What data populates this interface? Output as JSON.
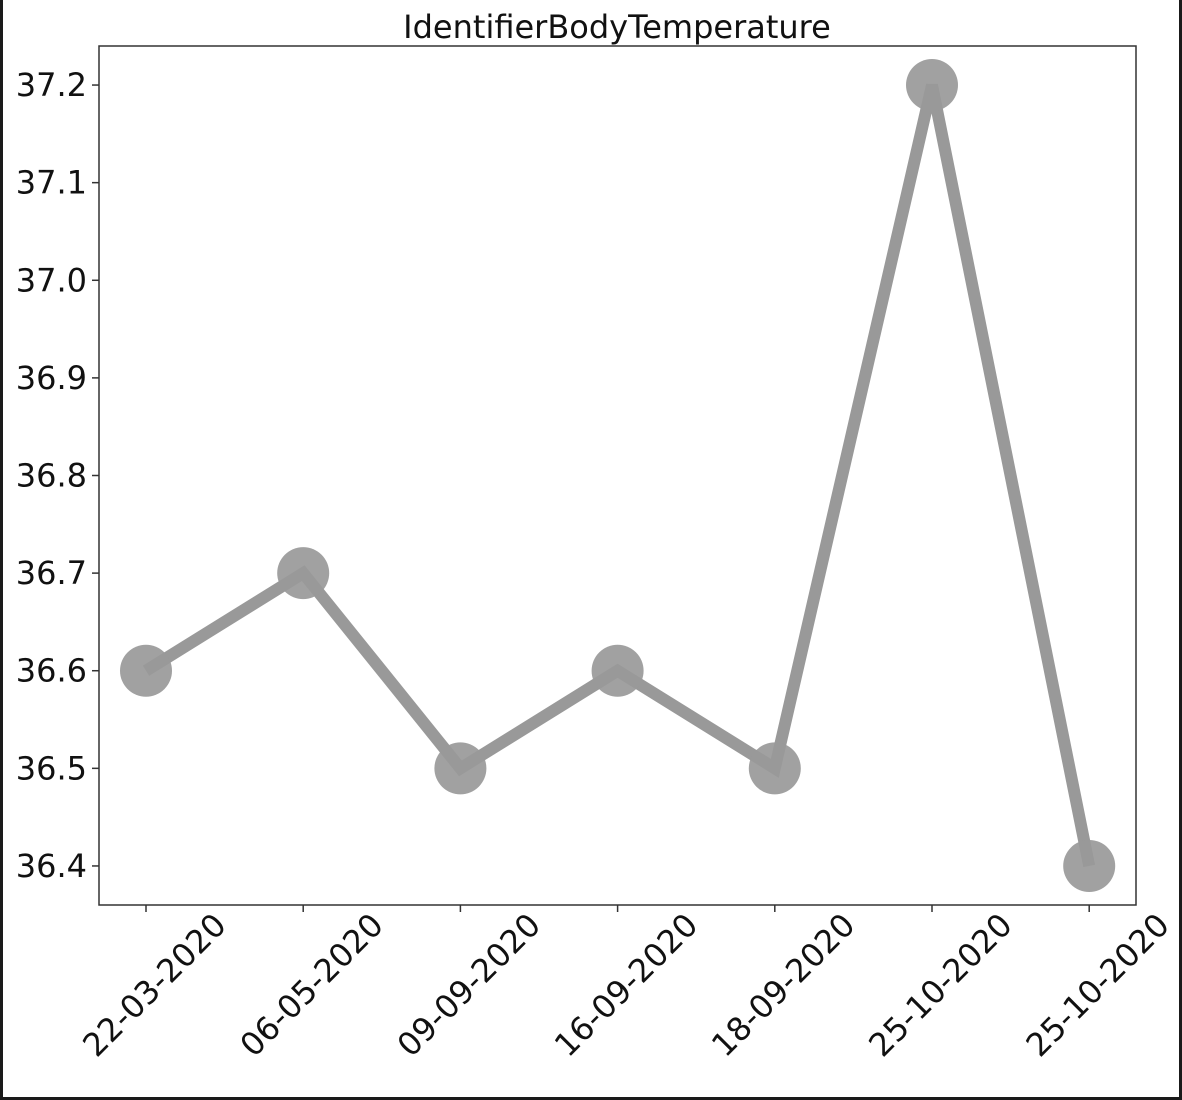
{
  "chart_data": {
    "type": "line",
    "title": "IdentifierBodyTemperature",
    "xlabel": "",
    "ylabel": "",
    "categories": [
      "22-03-2020",
      "06-05-2020",
      "09-09-2020",
      "16-09-2020",
      "18-09-2020",
      "25-10-2020",
      "25-10-2020"
    ],
    "series": [
      {
        "values": [
          36.6,
          36.7,
          36.5,
          36.6,
          36.5,
          37.2,
          36.4
        ]
      }
    ],
    "yticks": [
      "36.4",
      "36.5",
      "36.6",
      "36.7",
      "36.8",
      "36.9",
      "37.0",
      "37.1",
      "37.2"
    ],
    "ylim": [
      36.36,
      37.24
    ],
    "grid": false,
    "legend": "none",
    "colors": {
      "line": "#999999",
      "marker": "#999999",
      "axes": "#333333",
      "text": "#111111"
    }
  }
}
